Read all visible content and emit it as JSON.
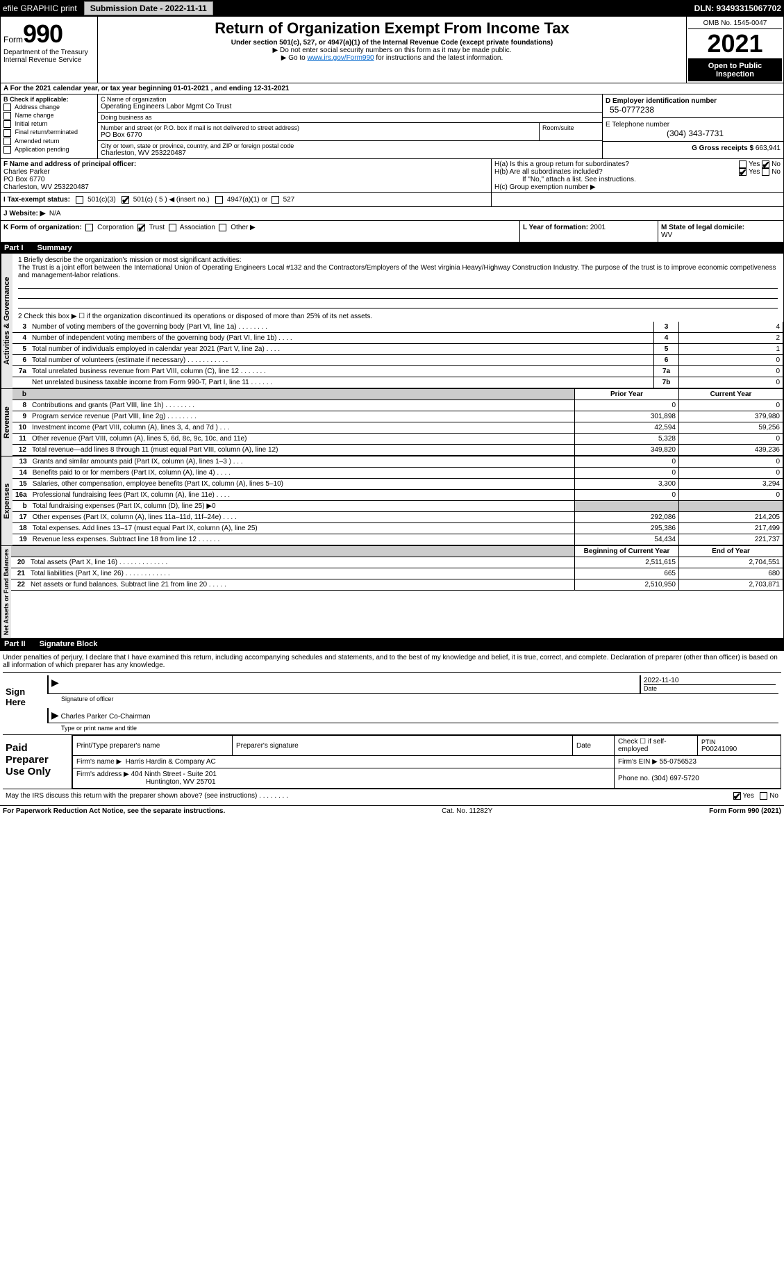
{
  "top": {
    "efile": "efile GRAPHIC print",
    "submission_label": "Submission Date - 2022-11-11",
    "dln": "DLN: 93493315067702"
  },
  "header": {
    "form_word": "Form",
    "form_num": "990",
    "dept1": "Department of the Treasury",
    "dept2": "Internal Revenue Service",
    "title": "Return of Organization Exempt From Income Tax",
    "sub": "Under section 501(c), 527, or 4947(a)(1) of the Internal Revenue Code (except private foundations)",
    "note1": "▶ Do not enter social security numbers on this form as it may be made public.",
    "note2_pre": "▶ Go to ",
    "note2_link": "www.irs.gov/Form990",
    "note2_post": " for instructions and the latest information.",
    "omb": "OMB No. 1545-0047",
    "year": "2021",
    "inspect": "Open to Public Inspection"
  },
  "row_a": "A For the 2021 calendar year, or tax year beginning 01-01-2021    , and ending 12-31-2021",
  "col_b": {
    "hdr": "B Check if applicable:",
    "items": [
      "Address change",
      "Name change",
      "Initial return",
      "Final return/terminated",
      "Amended return",
      "Application pending"
    ]
  },
  "col_c": {
    "name_lbl": "C Name of organization",
    "name": "Operating Engineers Labor Mgmt Co Trust",
    "dba_lbl": "Doing business as",
    "dba": "",
    "addr_lbl": "Number and street (or P.O. box if mail is not delivered to street address)",
    "room_lbl": "Room/suite",
    "addr": "PO Box 6770",
    "city_lbl": "City or town, state or province, country, and ZIP or foreign postal code",
    "city": "Charleston, WV  253220487"
  },
  "col_de": {
    "d_lbl": "D Employer identification number",
    "d_val": "55-0777238",
    "e_lbl": "E Telephone number",
    "e_val": "(304) 343-7731",
    "g_lbl": "G Gross receipts $",
    "g_val": "663,941"
  },
  "row_f": {
    "lbl": "F Name and address of principal officer:",
    "name": "Charles Parker",
    "addr1": "PO Box 6770",
    "addr2": "Charleston, WV  253220487"
  },
  "row_h": {
    "ha": "H(a)  Is this a group return for subordinates?",
    "ha_yes": "Yes",
    "ha_no": "No",
    "hb": "H(b)  Are all subordinates included?",
    "hb_yes": "Yes",
    "hb_no": "No",
    "hb_note": "If \"No,\" attach a list. See instructions.",
    "hc": "H(c)  Group exemption number ▶"
  },
  "row_i": {
    "lbl": "I  Tax-exempt status:",
    "o1": "501(c)(3)",
    "o2": "501(c) ( 5 ) ◀ (insert no.)",
    "o3": "4947(a)(1) or",
    "o4": "527"
  },
  "row_j": {
    "lbl": "J  Website: ▶",
    "val": "N/A"
  },
  "row_k": {
    "lbl": "K Form of organization:",
    "o1": "Corporation",
    "o2": "Trust",
    "o3": "Association",
    "o4": "Other ▶",
    "l_lbl": "L Year of formation:",
    "l_val": "2001",
    "m_lbl": "M State of legal domicile:",
    "m_val": "WV"
  },
  "part1": {
    "num": "Part I",
    "title": "Summary",
    "q1_lbl": "1  Briefly describe the organization's mission or most significant activities:",
    "q1_text": "The Trust is a joint effort between the International Union of Operating Engineers Local #132 and the Contractors/Employers of the West virginia Heavy/Highway Construction Industry. The purpose of the trust is to improve economic competiveness and management-labor relations.",
    "q2": "2   Check this box ▶ ☐  if the organization discontinued its operations or disposed of more than 25% of its net assets.",
    "rows_ag": [
      {
        "n": "3",
        "t": "Number of voting members of the governing body (Part VI, line 1a)   .    .    .    .    .    .    .    .",
        "k": "3",
        "v": "4"
      },
      {
        "n": "4",
        "t": "Number of independent voting members of the governing body (Part VI, line 1b)  .    .    .    .",
        "k": "4",
        "v": "2"
      },
      {
        "n": "5",
        "t": "Total number of individuals employed in calendar year 2021 (Part V, line 2a)   .    .    .    .",
        "k": "5",
        "v": "1"
      },
      {
        "n": "6",
        "t": "Total number of volunteers (estimate if necessary)    .    .    .    .    .    .    .    .    .    .    .",
        "k": "6",
        "v": "0"
      },
      {
        "n": "7a",
        "t": "Total unrelated business revenue from Part VIII, column (C), line 12   .    .    .    .    .    .    .",
        "k": "7a",
        "v": "0"
      },
      {
        "n": "",
        "t": "Net unrelated business taxable income from Form 990-T, Part I, line 11   .    .    .    .    .    .",
        "k": "7b",
        "v": "0"
      }
    ],
    "side_ag": "Activities & Governance",
    "side_rev": "Revenue",
    "side_exp": "Expenses",
    "side_na": "Net Assets or Fund Balances",
    "hdr_prior": "Prior Year",
    "hdr_curr": "Current Year",
    "hdr_beg": "Beginning of Current Year",
    "hdr_end": "End of Year",
    "b_hdr": "b",
    "rows_rev": [
      {
        "n": "8",
        "t": "Contributions and grants (Part VIII, line 1h)   .    .    .    .    .    .    .    .",
        "p": "0",
        "c": "0"
      },
      {
        "n": "9",
        "t": "Program service revenue (Part VIII, line 2g)   .    .    .    .    .    .    .    .",
        "p": "301,898",
        "c": "379,980"
      },
      {
        "n": "10",
        "t": "Investment income (Part VIII, column (A), lines 3, 4, and 7d )   .    .    .",
        "p": "42,594",
        "c": "59,256"
      },
      {
        "n": "11",
        "t": "Other revenue (Part VIII, column (A), lines 5, 6d, 8c, 9c, 10c, and 11e)",
        "p": "5,328",
        "c": "0"
      },
      {
        "n": "12",
        "t": "Total revenue—add lines 8 through 11 (must equal Part VIII, column (A), line 12)",
        "p": "349,820",
        "c": "439,236"
      }
    ],
    "rows_exp": [
      {
        "n": "13",
        "t": "Grants and similar amounts paid (Part IX, column (A), lines 1–3 )  .    .    .",
        "p": "0",
        "c": "0"
      },
      {
        "n": "14",
        "t": "Benefits paid to or for members (Part IX, column (A), line 4)   .    .    .    .",
        "p": "0",
        "c": "0"
      },
      {
        "n": "15",
        "t": "Salaries, other compensation, employee benefits (Part IX, column (A), lines 5–10)",
        "p": "3,300",
        "c": "3,294"
      },
      {
        "n": "16a",
        "t": "Professional fundraising fees (Part IX, column (A), line 11e)   .    .    .    .",
        "p": "0",
        "c": "0"
      },
      {
        "n": "b",
        "t": "Total fundraising expenses (Part IX, column (D), line 25) ▶0",
        "p": "",
        "c": "",
        "shade": true
      },
      {
        "n": "17",
        "t": "Other expenses (Part IX, column (A), lines 11a–11d, 11f–24e)  .    .    .    .",
        "p": "292,086",
        "c": "214,205"
      },
      {
        "n": "18",
        "t": "Total expenses. Add lines 13–17 (must equal Part IX, column (A), line 25)",
        "p": "295,386",
        "c": "217,499"
      },
      {
        "n": "19",
        "t": "Revenue less expenses. Subtract line 18 from line 12   .    .    .    .    .    .",
        "p": "54,434",
        "c": "221,737"
      }
    ],
    "rows_na": [
      {
        "n": "20",
        "t": "Total assets (Part X, line 16)   .    .    .    .    .    .    .    .    .    .    .    .    .",
        "p": "2,511,615",
        "c": "2,704,551"
      },
      {
        "n": "21",
        "t": "Total liabilities (Part X, line 26)   .    .    .    .    .    .    .    .    .    .    .    .",
        "p": "665",
        "c": "680"
      },
      {
        "n": "22",
        "t": "Net assets or fund balances. Subtract line 21 from line 20   .    .    .    .    .",
        "p": "2,510,950",
        "c": "2,703,871"
      }
    ]
  },
  "part2": {
    "num": "Part II",
    "title": "Signature Block"
  },
  "sig": {
    "declare": "Under penalties of perjury, I declare that I have examined this return, including accompanying schedules and statements, and to the best of my knowledge and belief, it is true, correct, and complete. Declaration of preparer (other than officer) is based on all information of which preparer has any knowledge.",
    "sign_here": "Sign Here",
    "sig_officer": "Signature of officer",
    "date_lbl": "Date",
    "date_val": "2022-11-10",
    "name": "Charles Parker  Co-Chairman",
    "name_lbl": "Type or print name and title",
    "paid": "Paid Preparer Use Only",
    "prep_name_lbl": "Print/Type preparer's name",
    "prep_sig_lbl": "Preparer's signature",
    "prep_date_lbl": "Date",
    "check_self": "Check ☐ if self-employed",
    "ptin_lbl": "PTIN",
    "ptin": "P00241090",
    "firm_name_lbl": "Firm's name      ▶",
    "firm_name": "Harris Hardin & Company AC",
    "firm_ein_lbl": "Firm's EIN ▶",
    "firm_ein": "55-0756523",
    "firm_addr_lbl": "Firm's address ▶",
    "firm_addr1": "404 Ninth Street - Suite 201",
    "firm_addr2": "Huntington, WV  25701",
    "phone_lbl": "Phone no.",
    "phone": "(304) 697-5720",
    "discuss": "May the IRS discuss this return with the preparer shown above? (see instructions)   .    .    .    .    .    .    .    .",
    "yes": "Yes",
    "no": "No"
  },
  "footer": {
    "pra": "For Paperwork Reduction Act Notice, see the separate instructions.",
    "cat": "Cat. No. 11282Y",
    "form": "Form 990 (2021)"
  }
}
